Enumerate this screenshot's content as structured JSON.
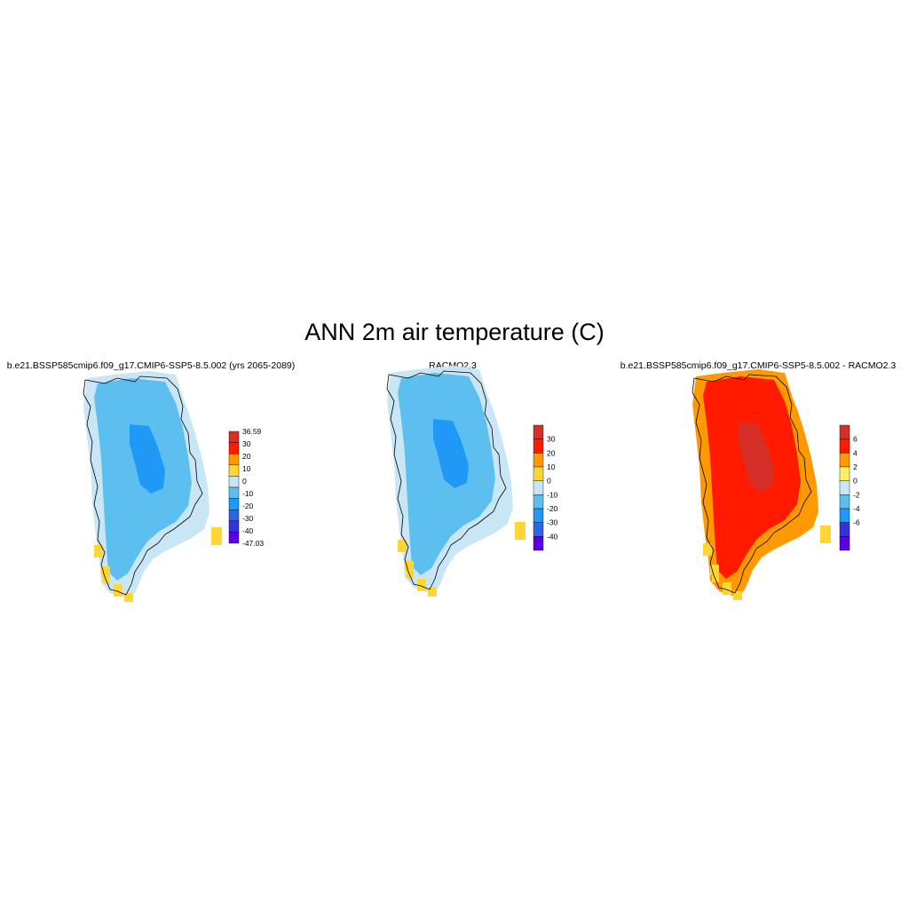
{
  "main_title": "ANN 2m air temperature (C)",
  "panels": [
    {
      "title": "b.e21.BSSP585cmip6.f09_g17.CMIP6-SSP5-8.5.002 (yrs 2065-2089)",
      "colorbar": {
        "labels": [
          "36.59",
          "30",
          "20",
          "10",
          "0",
          "-10",
          "-20",
          "-30",
          "-40",
          "-47.03"
        ],
        "colors": [
          "#d62f27",
          "#ff1a00",
          "#ff9900",
          "#ffd633",
          "#c8e6f5",
          "#5cbff0",
          "#1f99f5",
          "#2b66e6",
          "#3333d9",
          "#5a00e6"
        ]
      },
      "map_colors": {
        "coast_strip": "#ffd633",
        "margin": "#c8e6f5",
        "body": "#5cbff0",
        "core": "#1f99f5"
      }
    },
    {
      "title": "RACMO2.3",
      "colorbar": {
        "labels": [
          "30",
          "20",
          "10",
          "0",
          "-10",
          "-20",
          "-30",
          "-40"
        ],
        "colors": [
          "#d62f27",
          "#ff1a00",
          "#ff9900",
          "#ffd633",
          "#c8e6f5",
          "#5cbff0",
          "#1f99f5",
          "#2b66e6",
          "#5a00e6"
        ]
      },
      "map_colors": {
        "coast_strip": "#ffd633",
        "margin": "#c8e6f5",
        "body": "#5cbff0",
        "core": "#1f99f5"
      }
    },
    {
      "title": "b.e21.BSSP585cmip6.f09_g17.CMIP6-SSP5-8.5.002 - RACMO2.3",
      "colorbar": {
        "labels": [
          "6",
          "4",
          "2",
          "0",
          "-2",
          "-4",
          "-6"
        ],
        "colors": [
          "#d62f27",
          "#ff1a00",
          "#ff9900",
          "#ffee66",
          "#c8e6f5",
          "#5cbff0",
          "#1f99f5",
          "#3333d9",
          "#5a00e6"
        ]
      },
      "map_colors": {
        "coast_strip": "#ffd633",
        "margin": "#ff9900",
        "body": "#ff1a00",
        "core": "#d62f27"
      }
    }
  ]
}
